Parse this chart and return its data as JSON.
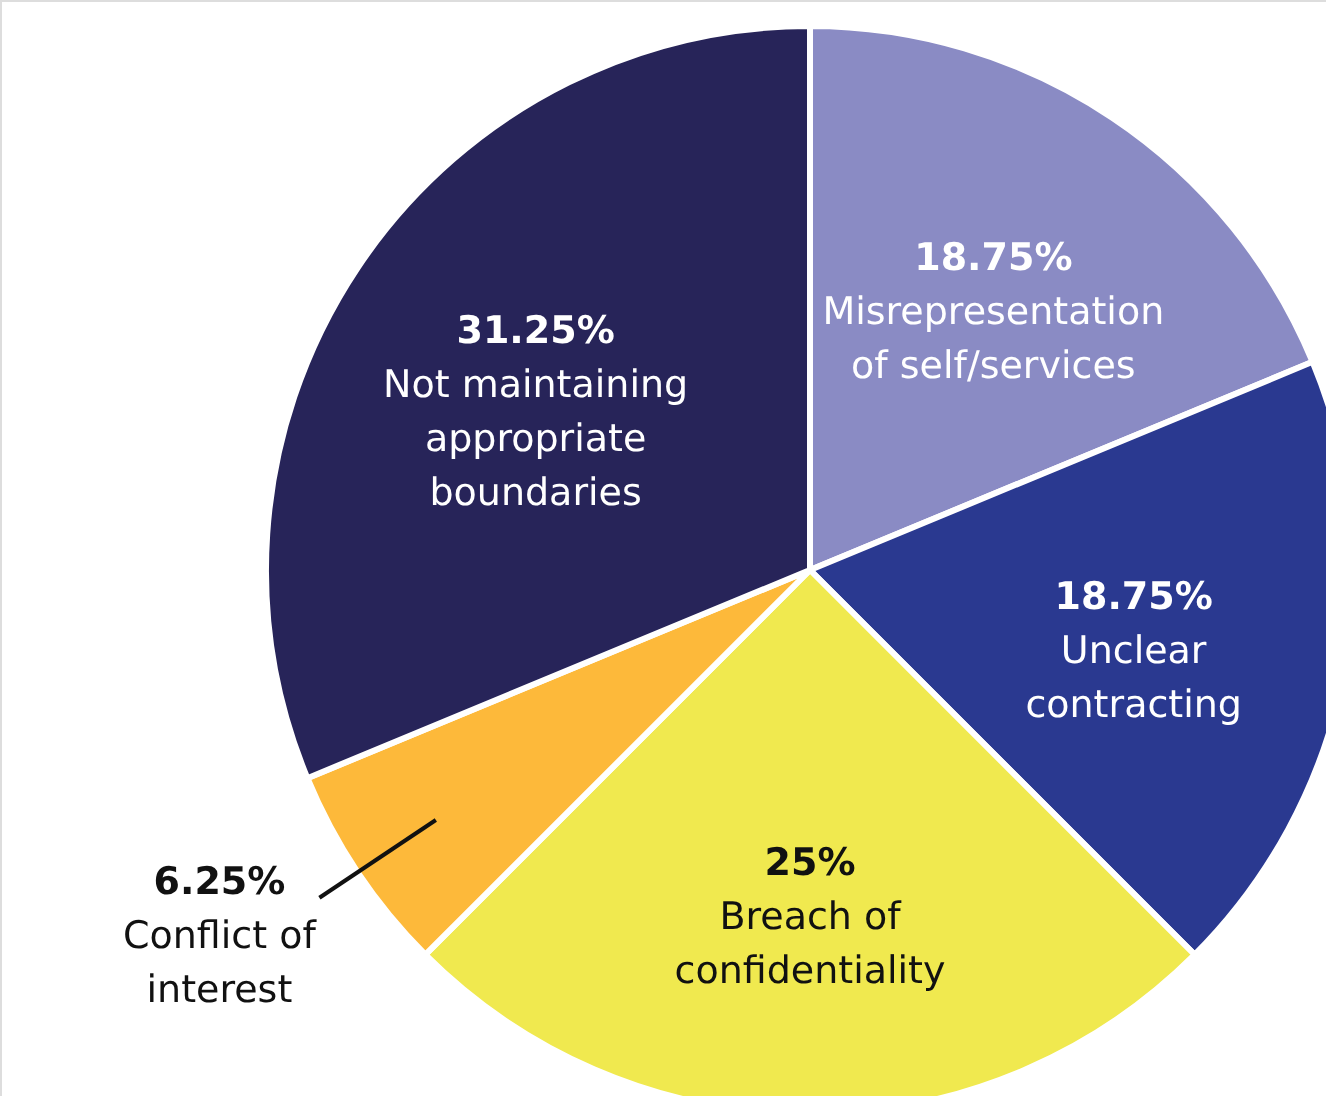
{
  "chart_data": {
    "type": "pie",
    "categories": [
      "Misrepresentation of self/services",
      "Unclear contracting",
      "Breach of confidentiality",
      "Conflict of interest",
      "Not maintaining appropriate boundaries"
    ],
    "values": [
      18.75,
      18.75,
      25,
      6.25,
      31.25
    ],
    "colors": [
      "#8a8bc4",
      "#2a3990",
      "#f0e94f",
      "#fdb93a",
      "#272459"
    ],
    "value_labels": [
      "18.75%",
      "18.75%",
      "25%",
      "6.25%",
      "31.25%"
    ]
  }
}
